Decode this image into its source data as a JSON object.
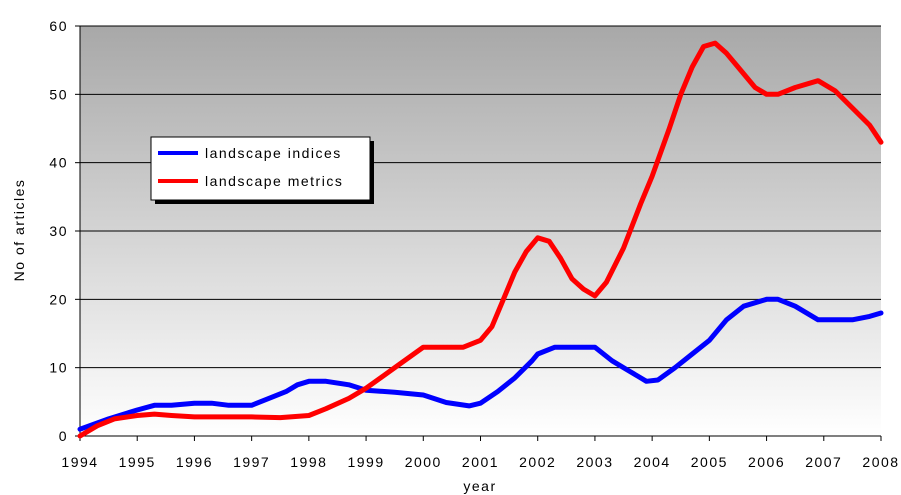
{
  "chart_data": {
    "type": "line",
    "title": "",
    "xlabel": "year",
    "ylabel": "No of articles",
    "xlim": [
      1994,
      2008
    ],
    "ylim": [
      0,
      60
    ],
    "x_ticks": [
      "1994",
      "1995",
      "1996",
      "1997",
      "1998",
      "1999",
      "2000",
      "2001",
      "2002",
      "2003",
      "2004",
      "2005",
      "2006",
      "2007",
      "2008"
    ],
    "y_ticks": [
      "0",
      "10",
      "20",
      "30",
      "40",
      "50",
      "60"
    ],
    "grid": "horizontal",
    "legend_position": "left",
    "plot_background": "gray gradient",
    "series": [
      {
        "name": "landscape indices",
        "color": "#0000ff",
        "x": [
          1994,
          1994.5,
          1995,
          1995.3,
          1995.6,
          1996,
          1996.3,
          1996.6,
          1997,
          1997.3,
          1997.6,
          1997.8,
          1998,
          1998.3,
          1998.7,
          1999,
          1999.5,
          2000,
          2000.4,
          2000.8,
          2001,
          2001.3,
          2001.6,
          2001.9,
          2002,
          2002.3,
          2002.6,
          2003,
          2003.3,
          2003.6,
          2003.9,
          2004.1,
          2004.4,
          2004.7,
          2005,
          2005.3,
          2005.6,
          2006,
          2006.2,
          2006.5,
          2006.9,
          2007.2,
          2007.5,
          2007.8,
          2008
        ],
        "y": [
          1,
          2.5,
          3.8,
          4.5,
          4.5,
          4.8,
          4.8,
          4.5,
          4.5,
          5.5,
          6.5,
          7.5,
          8,
          8,
          7.5,
          6.7,
          6.4,
          6,
          4.9,
          4.4,
          4.8,
          6.5,
          8.5,
          11,
          12,
          13,
          13,
          13,
          11,
          9.5,
          8,
          8.2,
          10,
          12,
          14,
          17,
          19,
          20,
          20,
          19,
          17,
          17,
          17,
          17.5,
          18
        ]
      },
      {
        "name": "landscape metrics",
        "color": "#ff0000",
        "x": [
          1994,
          1994.3,
          1994.6,
          1995,
          1995.3,
          1995.6,
          1996,
          1996.5,
          1997,
          1997.5,
          1998,
          1998.3,
          1998.7,
          1999,
          1999.5,
          2000,
          2000.3,
          2000.7,
          2001,
          2001.2,
          2001.4,
          2001.6,
          2001.8,
          2002,
          2002.2,
          2002.4,
          2002.6,
          2002.8,
          2003,
          2003.2,
          2003.5,
          2003.8,
          2004,
          2004.3,
          2004.5,
          2004.7,
          2004.9,
          2005.1,
          2005.3,
          2005.5,
          2005.8,
          2006,
          2006.2,
          2006.5,
          2006.9,
          2007.2,
          2007.5,
          2007.8,
          2008
        ],
        "y": [
          0,
          1.5,
          2.5,
          3,
          3.2,
          3,
          2.8,
          2.8,
          2.8,
          2.7,
          3,
          4,
          5.5,
          7,
          10,
          13,
          13,
          13,
          14,
          16,
          20,
          24,
          27,
          29,
          28.5,
          26,
          23,
          21.5,
          20.5,
          22.5,
          27.5,
          34,
          38,
          45,
          50,
          54,
          57,
          57.5,
          56,
          54,
          51,
          50,
          50,
          51,
          52,
          50.5,
          48,
          45.5,
          43
        ]
      }
    ]
  }
}
